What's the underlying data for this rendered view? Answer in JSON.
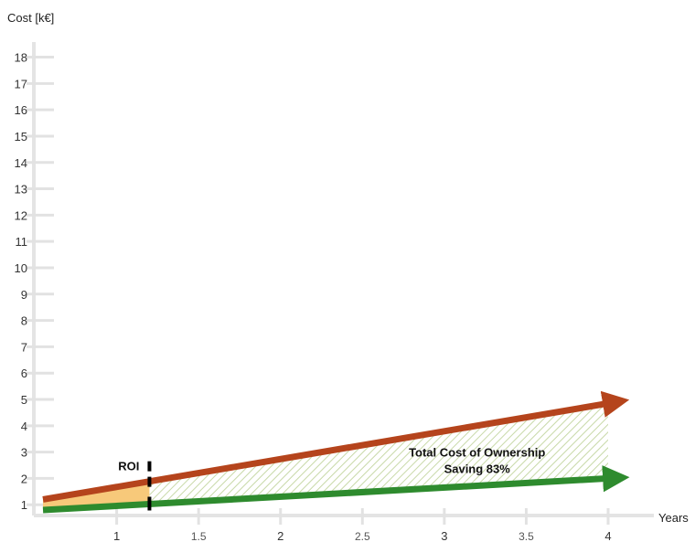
{
  "chart_data": {
    "type": "area",
    "ylabel": "Cost [k€]",
    "xlabel": "Years",
    "xlim": [
      0.55,
      4.0
    ],
    "ylim": [
      0.8,
      18.4
    ],
    "y_ticks": [
      "1",
      "2",
      "3",
      "4",
      "5",
      "6",
      "7",
      "8",
      "9",
      "10",
      "11",
      "12",
      "13",
      "14",
      "15",
      "16",
      "17",
      "18"
    ],
    "x_ticks": [
      {
        "value": 1,
        "label": "1",
        "major": true
      },
      {
        "value": 1.5,
        "label": "1.5",
        "major": false
      },
      {
        "value": 2,
        "label": "2",
        "major": true
      },
      {
        "value": 2.5,
        "label": "2.5",
        "major": false
      },
      {
        "value": 3,
        "label": "3",
        "major": true
      },
      {
        "value": 3.5,
        "label": "3.5",
        "major": false
      },
      {
        "value": 4,
        "label": "4",
        "major": true
      }
    ],
    "series": [
      {
        "color": "#b5441c",
        "x": [
          0.55,
          4.0
        ],
        "y": [
          1.2,
          4.85
        ]
      },
      {
        "color": "#2e8b2e",
        "x": [
          0.55,
          4.0
        ],
        "y": [
          0.8,
          2.0
        ]
      }
    ],
    "roi": {
      "label": "ROI",
      "x": 1.2
    },
    "roi_fill_color": "#f7c97a",
    "saving_hatch_color": "#c8d9a8",
    "annotation": {
      "line1": "Total Cost of Ownership",
      "line2": "Saving 83%",
      "x": 3.2,
      "y": 2.55
    }
  }
}
